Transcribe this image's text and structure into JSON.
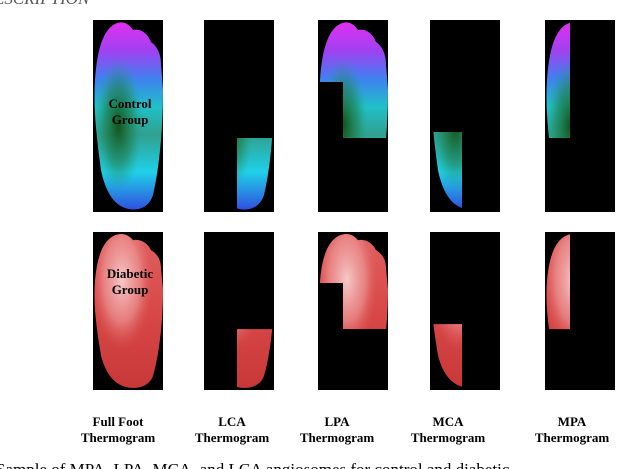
{
  "header": {
    "title": "ESCRIPTION"
  },
  "row_labels": [
    [
      "Control",
      "Group"
    ],
    [
      "Diabetic",
      "Group"
    ]
  ],
  "column_labels": [
    [
      "Full Foot",
      "Thermogram"
    ],
    [
      "LCA",
      "Thermogram"
    ],
    [
      "LPA",
      "Thermogram"
    ],
    [
      "MCA",
      "Thermogram"
    ],
    [
      "MPA",
      "Thermogram"
    ]
  ],
  "caption": "Sample of MPA, LPA, MCA, and LCA angiosomes for control and diabetic"
}
